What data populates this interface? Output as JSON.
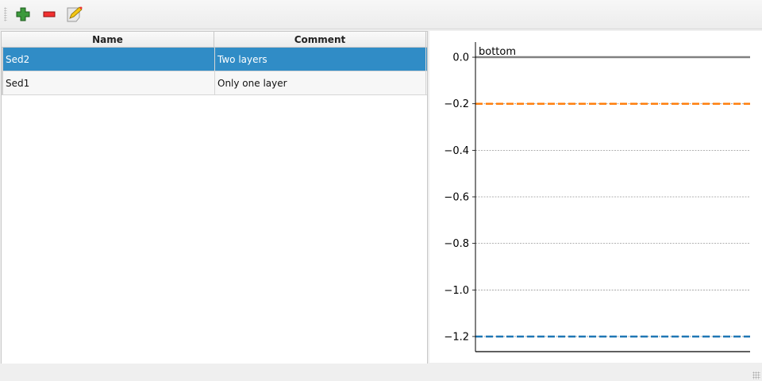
{
  "toolbar": {
    "buttons": [
      {
        "icon": "plus-icon",
        "action": "add"
      },
      {
        "icon": "minus-icon",
        "action": "remove"
      },
      {
        "icon": "edit-note-icon",
        "action": "edit"
      }
    ]
  },
  "table": {
    "columns": [
      "Name",
      "Comment"
    ],
    "rows": [
      {
        "name": "Sed2",
        "comment": "Two layers",
        "selected": true
      },
      {
        "name": "Sed1",
        "comment": "Only one layer",
        "selected": false
      }
    ],
    "selection_color": "#308cc6"
  },
  "chart_data": {
    "type": "line",
    "ylim": [
      -1.265,
      0.065
    ],
    "yticks": [
      0.0,
      -0.2,
      -0.4,
      -0.6,
      -0.8,
      -1.0,
      -1.2
    ],
    "ytick_labels": [
      "0.0",
      "−0.2",
      "−0.4",
      "−0.6",
      "−0.8",
      "−1.0",
      "−1.2"
    ],
    "grid": "horizontal dotted",
    "annotations": [
      {
        "text": "bottom",
        "y": 0.0
      }
    ],
    "lines": [
      {
        "y": 0.0,
        "style": "solid",
        "color": "#808080"
      },
      {
        "y": -0.2,
        "style": "dashed",
        "color": "#ff7f0e"
      },
      {
        "y": -1.2,
        "style": "dashed",
        "color": "#1f77b4"
      }
    ]
  }
}
